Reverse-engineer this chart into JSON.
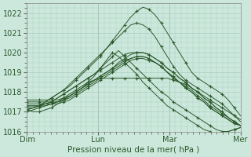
{
  "title": "Pression niveau de la mer( hPa )",
  "bg_color": "#cce8dc",
  "grid_color": "#aacfbf",
  "line_color": "#2d5a2d",
  "ylim": [
    1016,
    1022.5
  ],
  "yticks": [
    1016,
    1017,
    1018,
    1019,
    1020,
    1021,
    1022
  ],
  "xtick_labels": [
    "Dim",
    "Lun",
    "Mar",
    "Mer"
  ],
  "xtick_positions": [
    0,
    36,
    72,
    108
  ],
  "xlim": [
    0,
    108
  ],
  "num_points": 36,
  "lines": [
    [
      1017.1,
      1017.2,
      1017.3,
      1017.5,
      1017.7,
      1017.9,
      1018.1,
      1018.3,
      1018.6,
      1018.9,
      1019.2,
      1019.5,
      1019.8,
      1020.2,
      1020.6,
      1021.0,
      1021.4,
      1021.8,
      1022.1,
      1022.3,
      1022.2,
      1021.9,
      1021.5,
      1021.0,
      1020.5,
      1020.0,
      1019.5,
      1019.0,
      1018.7,
      1018.5,
      1018.3,
      1018.1,
      1017.9,
      1017.6,
      1017.2,
      1016.8
    ],
    [
      1017.1,
      1017.2,
      1017.3,
      1017.5,
      1017.7,
      1017.9,
      1018.1,
      1018.4,
      1018.7,
      1019.0,
      1019.3,
      1019.6,
      1019.9,
      1020.2,
      1020.5,
      1020.8,
      1021.1,
      1021.4,
      1021.5,
      1021.4,
      1021.2,
      1020.8,
      1020.3,
      1019.8,
      1019.3,
      1018.9,
      1018.6,
      1018.4,
      1018.2,
      1018.0,
      1017.8,
      1017.6,
      1017.4,
      1017.1,
      1016.8,
      1016.5
    ],
    [
      1017.0,
      1017.1,
      1017.2,
      1017.3,
      1017.4,
      1017.5,
      1017.7,
      1017.9,
      1018.1,
      1018.3,
      1018.5,
      1018.6,
      1018.7,
      1018.7,
      1018.7,
      1018.7,
      1018.7,
      1018.7,
      1018.7,
      1018.7,
      1018.7,
      1018.7,
      1018.7,
      1018.7,
      1018.6,
      1018.5,
      1018.4,
      1018.2,
      1018.0,
      1017.8,
      1017.6,
      1017.4,
      1017.2,
      1017.0,
      1016.8,
      1016.6
    ],
    [
      1017.3,
      1017.3,
      1017.3,
      1017.3,
      1017.4,
      1017.5,
      1017.6,
      1017.8,
      1018.0,
      1018.2,
      1018.4,
      1018.6,
      1018.8,
      1019.0,
      1019.2,
      1019.5,
      1019.7,
      1019.9,
      1020.0,
      1020.0,
      1019.9,
      1019.7,
      1019.5,
      1019.2,
      1019.0,
      1018.7,
      1018.5,
      1018.2,
      1018.0,
      1017.7,
      1017.5,
      1017.2,
      1017.0,
      1016.7,
      1016.5,
      1016.3
    ],
    [
      1017.2,
      1017.2,
      1017.3,
      1017.4,
      1017.5,
      1017.7,
      1017.9,
      1018.1,
      1018.3,
      1018.5,
      1018.7,
      1018.9,
      1019.1,
      1019.3,
      1019.5,
      1019.7,
      1019.9,
      1020.0,
      1020.0,
      1020.0,
      1019.9,
      1019.7,
      1019.5,
      1019.2,
      1019.0,
      1018.7,
      1018.5,
      1018.2,
      1018.0,
      1017.7,
      1017.5,
      1017.2,
      1017.0,
      1016.7,
      1016.5,
      1016.3
    ],
    [
      1017.5,
      1017.5,
      1017.5,
      1017.5,
      1017.5,
      1017.5,
      1017.6,
      1017.7,
      1017.9,
      1018.1,
      1018.3,
      1018.5,
      1018.7,
      1018.9,
      1019.1,
      1019.3,
      1019.5,
      1019.7,
      1019.8,
      1019.8,
      1019.7,
      1019.5,
      1019.3,
      1019.0,
      1018.7,
      1018.5,
      1018.2,
      1018.0,
      1017.7,
      1017.5,
      1017.2,
      1017.0,
      1016.8,
      1016.6,
      1016.4,
      1016.3
    ],
    [
      1017.4,
      1017.4,
      1017.4,
      1017.4,
      1017.4,
      1017.4,
      1017.5,
      1017.6,
      1017.8,
      1018.0,
      1018.2,
      1018.4,
      1018.6,
      1018.8,
      1019.0,
      1019.2,
      1019.4,
      1019.6,
      1019.7,
      1019.7,
      1019.6,
      1019.5,
      1019.3,
      1019.0,
      1018.7,
      1018.5,
      1018.2,
      1018.0,
      1017.7,
      1017.5,
      1017.2,
      1017.0,
      1016.8,
      1016.6,
      1016.4,
      1016.3
    ],
    [
      1017.3,
      1017.3,
      1017.3,
      1017.4,
      1017.5,
      1017.7,
      1017.9,
      1018.1,
      1018.3,
      1018.5,
      1018.7,
      1018.9,
      1019.2,
      1019.5,
      1019.8,
      1020.1,
      1019.8,
      1019.5,
      1019.2,
      1018.9,
      1018.6,
      1018.3,
      1018.0,
      1017.8,
      1017.5,
      1017.3,
      1017.1,
      1016.9,
      1016.7,
      1016.5,
      1016.3,
      1016.1,
      1016.0,
      1016.0,
      1016.1,
      1016.2
    ],
    [
      1017.1,
      1017.0,
      1017.0,
      1017.1,
      1017.2,
      1017.4,
      1017.6,
      1017.8,
      1018.0,
      1018.2,
      1018.5,
      1018.8,
      1019.2,
      1019.6,
      1020.0,
      1019.8,
      1019.5,
      1019.2,
      1018.9,
      1018.5,
      1018.2,
      1017.9,
      1017.6,
      1017.3,
      1017.1,
      1016.9,
      1016.7,
      1016.5,
      1016.3,
      1016.1,
      1016.0,
      1015.9,
      1015.9,
      1016.0,
      1016.1,
      1016.2
    ],
    [
      1017.6,
      1017.6,
      1017.6,
      1017.6,
      1017.6,
      1017.6,
      1017.7,
      1017.8,
      1018.0,
      1018.2,
      1018.4,
      1018.6,
      1018.8,
      1019.0,
      1019.2,
      1019.4,
      1019.6,
      1019.7,
      1019.8,
      1019.8,
      1019.7,
      1019.5,
      1019.3,
      1019.0,
      1018.8,
      1018.5,
      1018.3,
      1018.1,
      1017.8,
      1017.6,
      1017.3,
      1017.1,
      1016.9,
      1016.7,
      1016.5,
      1016.3
    ]
  ]
}
